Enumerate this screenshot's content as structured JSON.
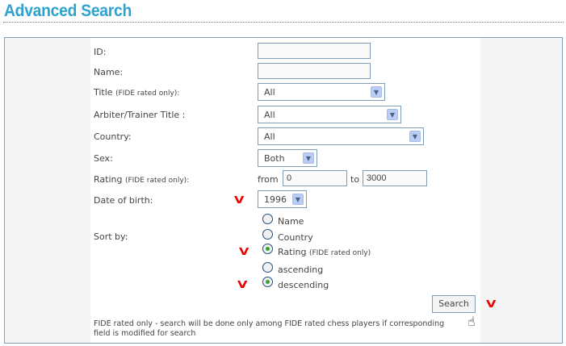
{
  "title": "Advanced Search",
  "fields": {
    "id": {
      "label": "ID:",
      "value": ""
    },
    "name": {
      "label": "Name:",
      "value": ""
    },
    "title": {
      "label": "Title",
      "note": "(FIDE rated only):",
      "value": "All"
    },
    "arbiter": {
      "label": "Arbiter/Trainer Title :",
      "value": "All"
    },
    "country": {
      "label": "Country:",
      "value": "All"
    },
    "sex": {
      "label": "Sex:",
      "value": "Both"
    },
    "rating": {
      "label": "Rating",
      "note": "(FIDE rated only):",
      "from_label": "from",
      "from": "0",
      "to_label": "to",
      "to": "3000"
    },
    "dob": {
      "label": "Date of birth:",
      "value": "1996"
    },
    "sort": {
      "label": "Sort by:",
      "options": [
        "Name",
        "Country",
        "Rating"
      ],
      "rating_note": "(FIDE rated only)",
      "selected": "Rating",
      "order": [
        "ascending",
        "descending"
      ],
      "order_selected": "descending"
    }
  },
  "search_label": "Search",
  "footnote": "FIDE rated only - search will be done only among FIDE rated chess players if corresponding field is modified for search",
  "check_mark": "V"
}
